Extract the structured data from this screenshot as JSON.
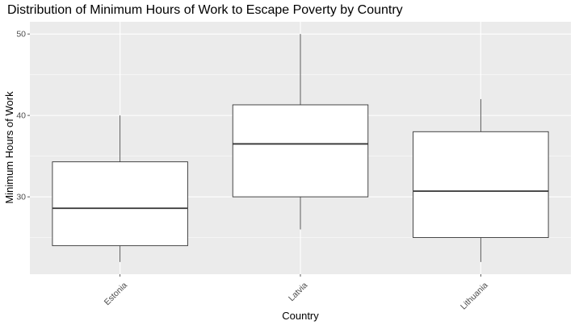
{
  "chart_data": {
    "type": "boxplot",
    "title": "Distribution of Minimum Hours of Work to Escape Poverty by Country",
    "xlabel": "Country",
    "ylabel": "Minimum Hours of Work",
    "categories": [
      "Estonia",
      "Latvia",
      "Lithuania"
    ],
    "boxes": [
      {
        "category": "Estonia",
        "min": 22,
        "q1": 24,
        "median": 28.6,
        "q3": 34.3,
        "max": 40
      },
      {
        "category": "Latvia",
        "min": 26,
        "q1": 30,
        "median": 36.5,
        "q3": 41.3,
        "max": 50
      },
      {
        "category": "Lithuania",
        "min": 22,
        "q1": 25,
        "median": 30.7,
        "q3": 38,
        "max": 42
      }
    ],
    "yticks": [
      30,
      40,
      50
    ],
    "ylim": [
      20.5,
      51.5
    ],
    "grid": true,
    "legend": "none",
    "colors": {
      "panel": "#ebebeb",
      "grid": "#ffffff",
      "box_fill": "#ffffff",
      "box_stroke": "#333333"
    }
  }
}
